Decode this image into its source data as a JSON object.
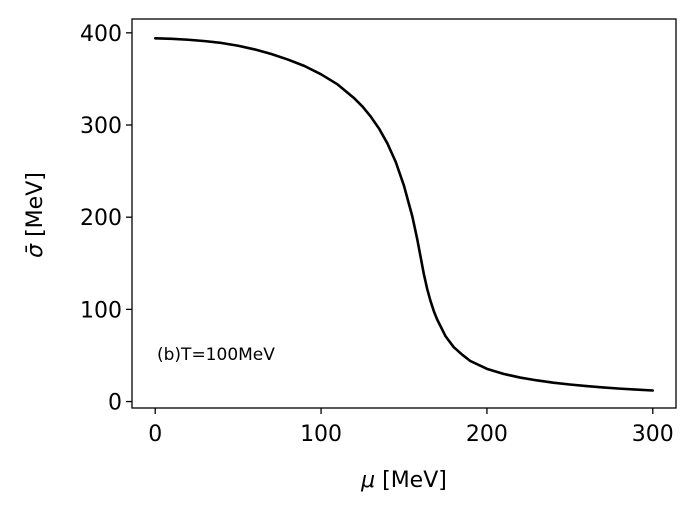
{
  "chart_data": {
    "type": "line",
    "title": "",
    "xlabel": "μ [MeV]",
    "xlabel_parts": {
      "symbol": "μ",
      "unit": " [MeV]"
    },
    "ylabel": "σ̄ [MeV]",
    "ylabel_parts": {
      "symbol": "σ̄",
      "unit": " [MeV]"
    },
    "xlim": [
      -14,
      314
    ],
    "ylim": [
      -7,
      415
    ],
    "xticks": [
      0,
      100,
      200,
      300
    ],
    "yticks": [
      0,
      100,
      200,
      300,
      400
    ],
    "grid": false,
    "annotation": "(b)T=100MeV",
    "series": [
      {
        "color": "#000000",
        "x": [
          0,
          10,
          20,
          30,
          40,
          50,
          60,
          70,
          80,
          90,
          100,
          110,
          120,
          125,
          130,
          135,
          140,
          145,
          150,
          155,
          158,
          160,
          162,
          164,
          166,
          168,
          170,
          175,
          180,
          185,
          190,
          200,
          210,
          220,
          230,
          240,
          250,
          260,
          270,
          280,
          290,
          300
        ],
        "y": [
          394,
          393.5,
          392.5,
          391,
          389,
          386,
          382,
          377,
          371,
          364,
          355,
          344,
          329,
          320,
          309,
          296,
          280,
          260,
          234,
          201,
          176,
          157,
          138,
          122,
          109,
          98,
          89,
          71,
          59,
          51,
          44,
          35.5,
          30,
          26,
          23,
          20.5,
          18.5,
          16.8,
          15.3,
          14,
          13,
          12
        ]
      }
    ]
  }
}
